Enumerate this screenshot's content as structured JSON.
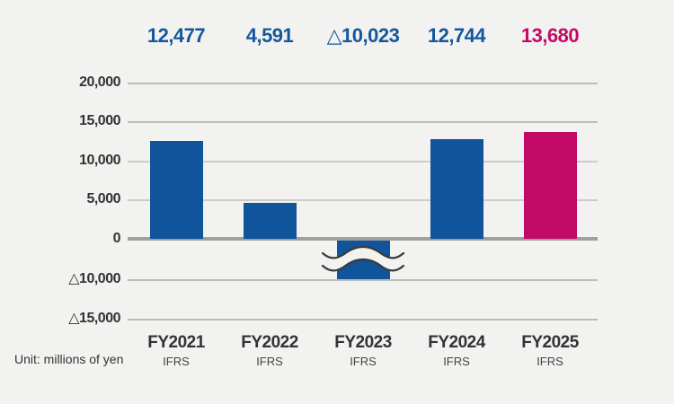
{
  "chart_data": {
    "type": "bar",
    "title": "",
    "unit_note": "Unit: millions of yen",
    "categories": [
      "FY2021",
      "FY2022",
      "FY2023",
      "FY2024",
      "FY2025"
    ],
    "category_sublabels": [
      "IFRS",
      "IFRS",
      "IFRS",
      "IFRS",
      "IFRS"
    ],
    "values": [
      12477,
      4591,
      -10023,
      12744,
      13680
    ],
    "value_labels": [
      "12,477",
      "4,591",
      "△10,023",
      "12,744",
      "13,680"
    ],
    "bar_colors": [
      "#10549C",
      "#10549C",
      "#10549C",
      "#10549C",
      "#C20A66"
    ],
    "value_label_colors": [
      "#15579D",
      "#15579D",
      "#15579D",
      "#15579D",
      "#C30A68"
    ],
    "y_ticks": [
      "20,000",
      "15,000",
      "10,000",
      "5,000",
      "0",
      "△10,000",
      "△15,000"
    ],
    "ylim": [
      -15000,
      20000
    ],
    "grid": true,
    "legend": "none",
    "axis_break": "wavy break symbol on FY2023 negative bar; negative axis region compressed",
    "colors": {
      "background": "#F2F2F0",
      "grid": "#BCBCBA",
      "grid_light": "#CCCCCA",
      "zero_line": "#A0A09E",
      "text": "#333333",
      "break_stroke": "#3A3A3A"
    }
  }
}
